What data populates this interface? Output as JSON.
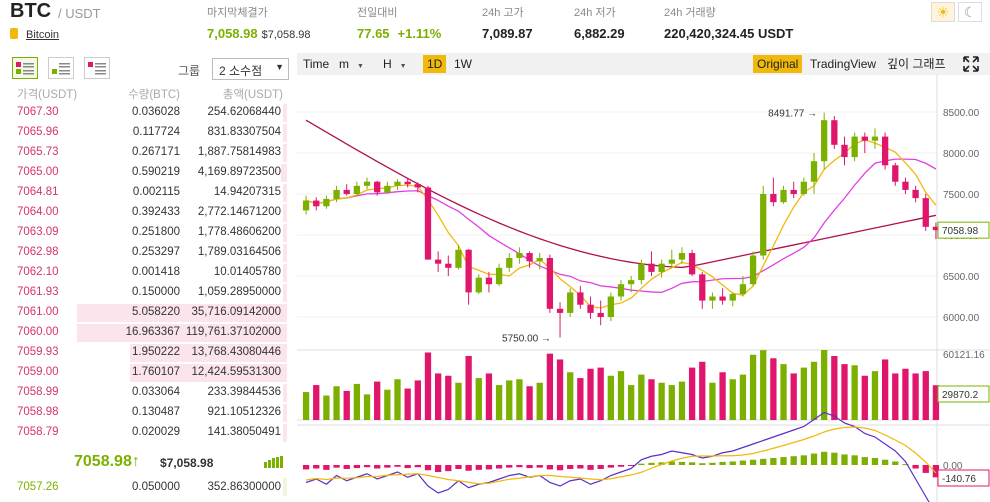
{
  "header": {
    "symbol": "BTC",
    "quote": "/ USDT",
    "coin_link": "Bitcoin",
    "stats": [
      {
        "label": "마지막체결가",
        "value": "7,058.98",
        "sub": "$7,058.98"
      },
      {
        "label": "전일대비",
        "value": "77.65",
        "sub": "+1.11%"
      },
      {
        "label": "24h 고가",
        "value": "7,089.87"
      },
      {
        "label": "24h 저가",
        "value": "6,882.29"
      },
      {
        "label": "24h 거래량",
        "value": "220,420,324.45 USDT"
      }
    ],
    "theme_light_icon": "☀",
    "theme_dark_icon": "☾"
  },
  "orderbook": {
    "group_label": "그룹",
    "group_value": "2 소수점",
    "columns": [
      "가격(USDT)",
      "수량(BTC)",
      "총액(USDT)"
    ],
    "asks": [
      {
        "price": "7067.30",
        "qty": "0.036028",
        "total": "254.62068440",
        "depth": 0.02
      },
      {
        "price": "7065.96",
        "qty": "0.117724",
        "total": "831.83307504",
        "depth": 0.02
      },
      {
        "price": "7065.73",
        "qty": "0.267171",
        "total": "1,887.75814983",
        "depth": 0.02
      },
      {
        "price": "7065.00",
        "qty": "0.590219",
        "total": "4,169.89723500",
        "depth": 0.03
      },
      {
        "price": "7064.81",
        "qty": "0.002115",
        "total": "14.94207315",
        "depth": 0.02
      },
      {
        "price": "7064.00",
        "qty": "0.392433",
        "total": "2,772.14671200",
        "depth": 0.02
      },
      {
        "price": "7063.09",
        "qty": "0.251800",
        "total": "1,778.48606200",
        "depth": 0.02
      },
      {
        "price": "7062.98",
        "qty": "0.253297",
        "total": "1,789.03164506",
        "depth": 0.02
      },
      {
        "price": "7062.10",
        "qty": "0.001418",
        "total": "10.01405780",
        "depth": 0.02
      },
      {
        "price": "7061.93",
        "qty": "0.150000",
        "total": "1,059.28950000",
        "depth": 0.02
      },
      {
        "price": "7061.00",
        "qty": "5.058220",
        "total": "35,716.09142000",
        "depth": 1.0
      },
      {
        "price": "7060.00",
        "qty": "16.963367",
        "total": "119,761.37102000",
        "depth": 1.0
      },
      {
        "price": "7059.93",
        "qty": "1.950222",
        "total": "13,768.43080446",
        "depth": 0.75
      },
      {
        "price": "7059.00",
        "qty": "1.760107",
        "total": "12,424.59531300",
        "depth": 0.75
      },
      {
        "price": "7058.99",
        "qty": "0.033064",
        "total": "233.39844536",
        "depth": 0.02
      },
      {
        "price": "7058.98",
        "qty": "0.130487",
        "total": "921.10512326",
        "depth": 0.02
      },
      {
        "price": "7058.79",
        "qty": "0.020029",
        "total": "141.38050491",
        "depth": 0.02
      }
    ],
    "last_price": "7058.98",
    "last_arrow": "↑",
    "last_usd": "$7,058.98",
    "bids": [
      {
        "price": "7057.26",
        "qty": "0.050000",
        "total": "352.86300000",
        "depth": 0.02
      }
    ]
  },
  "chart": {
    "toolbar_left": [
      "Time",
      "m",
      "H",
      "1D",
      "1W"
    ],
    "active_interval": "1D",
    "toolbar_right": [
      "Original",
      "TradingView",
      "깊이 그래프"
    ],
    "active_view": "Original",
    "expand_icon": "expand-icon"
  },
  "chart_data": {
    "type": "candlestick",
    "price_ticks": [
      "8500.00",
      "8000.00",
      "7500.00",
      "7000.00",
      "6500.00",
      "6000.00"
    ],
    "last_price_label": "7058.98",
    "high_annotation": "8491.77",
    "low_annotation": "5750.00",
    "volume_labels": {
      "max": "60121.16",
      "current": "29870.2"
    },
    "macd_labels": {
      "zero": "0.00",
      "current": "-140.76"
    },
    "colors": {
      "up": "#7cb000",
      "down": "#e0156c",
      "ma_short": "#f0b90b",
      "ma_mid": "#e040e0",
      "ma_long": "#b0104a"
    },
    "candles": [
      [
        7300,
        7480,
        7250,
        7420
      ],
      [
        7420,
        7460,
        7300,
        7350
      ],
      [
        7350,
        7480,
        7320,
        7440
      ],
      [
        7440,
        7600,
        7400,
        7550
      ],
      [
        7550,
        7620,
        7480,
        7500
      ],
      [
        7500,
        7650,
        7470,
        7600
      ],
      [
        7600,
        7700,
        7560,
        7650
      ],
      [
        7650,
        7660,
        7480,
        7520
      ],
      [
        7520,
        7650,
        7500,
        7600
      ],
      [
        7600,
        7680,
        7550,
        7650
      ],
      [
        7650,
        7700,
        7580,
        7620
      ],
      [
        7620,
        7640,
        7520,
        7580
      ],
      [
        7580,
        7600,
        6700,
        6700
      ],
      [
        6700,
        6800,
        6550,
        6650
      ],
      [
        6650,
        6750,
        6500,
        6600
      ],
      [
        6600,
        6880,
        6580,
        6820
      ],
      [
        6820,
        6830,
        6150,
        6300
      ],
      [
        6300,
        6520,
        6280,
        6480
      ],
      [
        6480,
        6550,
        6300,
        6400
      ],
      [
        6400,
        6650,
        6380,
        6600
      ],
      [
        6600,
        6780,
        6550,
        6720
      ],
      [
        6720,
        6850,
        6650,
        6780
      ],
      [
        6780,
        6800,
        6600,
        6680
      ],
      [
        6680,
        6780,
        6580,
        6720
      ],
      [
        6720,
        6760,
        6050,
        6100
      ],
      [
        6100,
        6180,
        5750,
        6050
      ],
      [
        6050,
        6350,
        6000,
        6300
      ],
      [
        6300,
        6380,
        6100,
        6150
      ],
      [
        6150,
        6250,
        5980,
        6050
      ],
      [
        6050,
        6200,
        5900,
        6000
      ],
      [
        6000,
        6300,
        5950,
        6250
      ],
      [
        6250,
        6450,
        6200,
        6400
      ],
      [
        6400,
        6500,
        6300,
        6450
      ],
      [
        6450,
        6700,
        6400,
        6650
      ],
      [
        6650,
        6800,
        6500,
        6550
      ],
      [
        6550,
        6700,
        6480,
        6650
      ],
      [
        6650,
        6820,
        6600,
        6700
      ],
      [
        6700,
        6850,
        6650,
        6780
      ],
      [
        6780,
        6820,
        6500,
        6520
      ],
      [
        6520,
        6550,
        6100,
        6200
      ],
      [
        6200,
        6300,
        6100,
        6250
      ],
      [
        6250,
        6350,
        6150,
        6200
      ],
      [
        6200,
        6300,
        6130,
        6280
      ],
      [
        6280,
        6500,
        6250,
        6400
      ],
      [
        6400,
        6800,
        6380,
        6750
      ],
      [
        6750,
        7600,
        6700,
        7500
      ],
      [
        7500,
        7700,
        7350,
        7400
      ],
      [
        7400,
        7600,
        7380,
        7550
      ],
      [
        7550,
        7650,
        7450,
        7500
      ],
      [
        7500,
        7700,
        7480,
        7650
      ],
      [
        7650,
        8000,
        7500,
        7900
      ],
      [
        7900,
        8492,
        7800,
        8400
      ],
      [
        8400,
        8450,
        8050,
        8100
      ],
      [
        8100,
        8200,
        7850,
        7950
      ],
      [
        7950,
        8250,
        7900,
        8200
      ],
      [
        8200,
        8250,
        8000,
        8150
      ],
      [
        8150,
        8300,
        8050,
        8200
      ],
      [
        8200,
        8250,
        7800,
        7850
      ],
      [
        7850,
        7880,
        7600,
        7650
      ],
      [
        7650,
        7700,
        7500,
        7550
      ],
      [
        7550,
        7600,
        7400,
        7450
      ],
      [
        7450,
        7500,
        7050,
        7100
      ],
      [
        7100,
        7150,
        6950,
        7059
      ]
    ],
    "volumes": [
      24000,
      30000,
      21000,
      29000,
      25000,
      31000,
      22000,
      33000,
      26000,
      35000,
      27000,
      34000,
      58000,
      40000,
      38000,
      32000,
      55000,
      36000,
      40000,
      30000,
      34000,
      35000,
      29000,
      32000,
      57000,
      52000,
      41000,
      36000,
      44000,
      45000,
      38000,
      42000,
      30000,
      39000,
      35000,
      32000,
      30000,
      33000,
      45000,
      50000,
      32000,
      41000,
      35000,
      39000,
      56000,
      60000,
      53000,
      48000,
      40000,
      45000,
      50000,
      60121,
      55000,
      48000,
      47000,
      38000,
      42000,
      52000,
      40000,
      44000,
      40000,
      42000,
      29870
    ],
    "macd": [
      -50,
      -40,
      -55,
      -30,
      -45,
      -35,
      -25,
      -40,
      -30,
      -20,
      -35,
      -25,
      -60,
      -80,
      -70,
      -45,
      -65,
      -55,
      -50,
      -40,
      -30,
      -25,
      -35,
      -30,
      -50,
      -60,
      -45,
      -40,
      -55,
      -45,
      -30,
      -20,
      -10,
      15,
      25,
      30,
      40,
      35,
      30,
      20,
      25,
      35,
      40,
      50,
      60,
      70,
      80,
      90,
      100,
      110,
      130,
      150,
      140,
      120,
      110,
      90,
      80,
      60,
      40,
      10,
      -40,
      -90,
      -140
    ]
  }
}
